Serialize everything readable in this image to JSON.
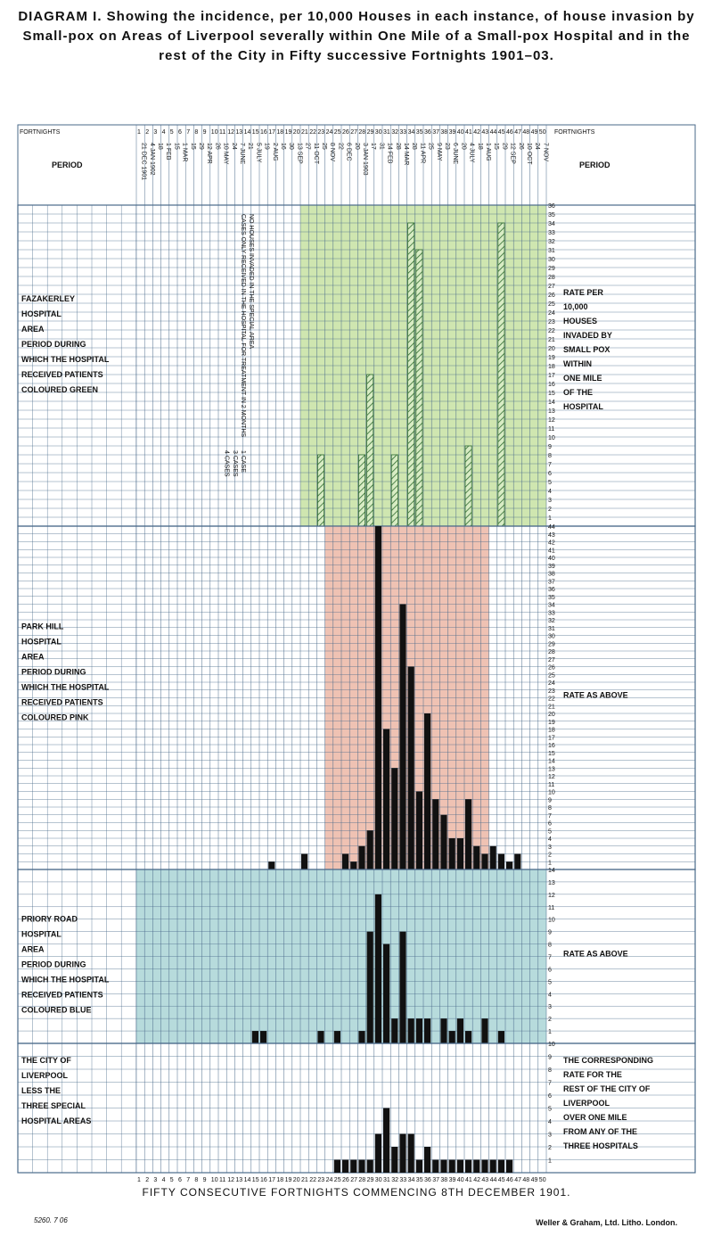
{
  "title": "DIAGRAM I. Showing the incidence, per 10,000 Houses in each instance, of house invasion by Small-pox on Areas of Liverpool severally within One Mile of a Small-pox Hospital and in the rest of the City in Fifty successive Fortnights 1901–03.",
  "header": {
    "fortnight_label": "FORTNIGHTS",
    "period_label": "PERIOD",
    "period_dates": [
      "21 DEC 1901",
      "4 JAN 1902",
      "18",
      "1 FEB",
      "15",
      "1 MAR",
      "15",
      "29",
      "12 APR",
      "26",
      "10 MAY",
      "24",
      "7 JUNE",
      "21",
      "5 JULY",
      "19",
      "2 AUG",
      "16",
      "30",
      "13 SEP",
      "27",
      "11 OCT",
      "25",
      "8 NOV",
      "22",
      "6 DEC",
      "20",
      "3 JAN 1903",
      "17",
      "31",
      "14 FEB",
      "28",
      "14 MAR",
      "28",
      "11 APR",
      "25",
      "9 MAY",
      "23",
      "6 JUNE",
      "20",
      "4 JULY",
      "18",
      "1 AUG",
      "15",
      "29",
      "12 SEP",
      "26",
      "10 OCT",
      "24",
      "7 NOV"
    ]
  },
  "annotations": {
    "fazakerley_a": "4 CASES",
    "fazakerley_b": "3 CASES",
    "fazakerley_c": "1 CASE",
    "fazakerley_d": "CASES ONLY RECEIVED IN THE HOSPITAL FOR TREATMENT IN 2 MONTHS",
    "fazakerley_e": "NO HOUSES INVADED IN THE SPECIAL AREA"
  },
  "panels": [
    {
      "key": "fazakerley",
      "label": [
        "FAZAKERLEY",
        "HOSPITAL",
        "AREA",
        "PERIOD DURING",
        "WHICH THE HOSPITAL",
        "RECEIVED PATIENTS",
        "COLOURED GREEN"
      ],
      "right_note": [
        "RATE PER",
        "10,000",
        "HOUSES",
        "INVADED BY",
        "SMALL POX",
        "WITHIN",
        "ONE MILE",
        "OF THE",
        "HOSPITAL"
      ]
    },
    {
      "key": "park_hill",
      "label": [
        "PARK HILL",
        "HOSPITAL",
        "AREA",
        "PERIOD DURING",
        "WHICH THE HOSPITAL",
        "RECEIVED PATIENTS",
        "COLOURED PINK"
      ],
      "right_note": [
        "RATE AS ABOVE"
      ]
    },
    {
      "key": "priory_road",
      "label": [
        "PRIORY ROAD",
        "HOSPITAL",
        "AREA",
        "PERIOD DURING",
        "WHICH THE HOSPITAL",
        "RECEIVED PATIENTS",
        "COLOURED BLUE"
      ],
      "right_note": [
        "RATE AS ABOVE"
      ]
    },
    {
      "key": "rest_of_city",
      "label": [
        "THE CITY OF",
        "LIVERPOOL",
        "LESS THE",
        "THREE SPECIAL",
        "HOSPITAL AREAS"
      ],
      "right_note": [
        "THE CORRESPONDING",
        "RATE FOR THE",
        "REST OF THE CITY OF",
        "LIVERPOOL",
        "OVER ONE MILE",
        "FROM ANY OF THE",
        "THREE HOSPITALS"
      ]
    }
  ],
  "colors": {
    "green": "#cfe6b0",
    "pink": "#efc2b3",
    "blue": "#b7dbdc",
    "grid": "#4a6a8a",
    "bar": "#111111",
    "hatch": "#2d6a2d"
  },
  "chart_data": [
    {
      "type": "bar",
      "title": "FAZAKERLEY HOSPITAL AREA",
      "xlabel": "",
      "ylabel": "RATE PER 10,000 HOUSES",
      "ylim": [
        0,
        36
      ],
      "x": [
        1,
        2,
        3,
        4,
        5,
        6,
        7,
        8,
        9,
        10,
        11,
        12,
        13,
        14,
        15,
        16,
        17,
        18,
        19,
        20,
        21,
        22,
        23,
        24,
        25,
        26,
        27,
        28,
        29,
        30,
        31,
        32,
        33,
        34,
        35,
        36,
        37,
        38,
        39,
        40,
        41,
        42,
        43,
        44,
        45,
        46,
        47,
        48,
        49,
        50
      ],
      "values": [
        0,
        0,
        0,
        0,
        0,
        0,
        0,
        0,
        0,
        0,
        0,
        0,
        0,
        0,
        0,
        0,
        0,
        0,
        0,
        0,
        0,
        0,
        8,
        0,
        0,
        0,
        0,
        8,
        17,
        0,
        0,
        8,
        0,
        34,
        31,
        0,
        0,
        0,
        0,
        0,
        9,
        0,
        0,
        0,
        34,
        0,
        0,
        0,
        0,
        0
      ],
      "hospital_receiving_patients": [
        21,
        50
      ]
    },
    {
      "type": "bar",
      "title": "PARK HILL HOSPITAL AREA",
      "xlabel": "",
      "ylabel": "RATE AS ABOVE",
      "ylim": [
        0,
        44
      ],
      "x": [
        1,
        2,
        3,
        4,
        5,
        6,
        7,
        8,
        9,
        10,
        11,
        12,
        13,
        14,
        15,
        16,
        17,
        18,
        19,
        20,
        21,
        22,
        23,
        24,
        25,
        26,
        27,
        28,
        29,
        30,
        31,
        32,
        33,
        34,
        35,
        36,
        37,
        38,
        39,
        40,
        41,
        42,
        43,
        44,
        45,
        46,
        47,
        48,
        49,
        50
      ],
      "values": [
        0,
        0,
        0,
        0,
        0,
        0,
        0,
        0,
        0,
        0,
        0,
        0,
        0,
        0,
        0,
        0,
        1,
        0,
        0,
        0,
        2,
        0,
        0,
        0,
        0,
        2,
        1,
        3,
        5,
        44,
        18,
        13,
        34,
        26,
        10,
        20,
        9,
        7,
        4,
        4,
        9,
        3,
        2,
        3,
        2,
        1,
        2,
        0,
        0,
        0
      ],
      "hospital_receiving_patients": [
        24,
        43
      ]
    },
    {
      "type": "bar",
      "title": "PRIORY ROAD HOSPITAL AREA",
      "xlabel": "",
      "ylabel": "RATE AS ABOVE",
      "ylim": [
        0,
        14
      ],
      "x": [
        1,
        2,
        3,
        4,
        5,
        6,
        7,
        8,
        9,
        10,
        11,
        12,
        13,
        14,
        15,
        16,
        17,
        18,
        19,
        20,
        21,
        22,
        23,
        24,
        25,
        26,
        27,
        28,
        29,
        30,
        31,
        32,
        33,
        34,
        35,
        36,
        37,
        38,
        39,
        40,
        41,
        42,
        43,
        44,
        45,
        46,
        47,
        48,
        49,
        50
      ],
      "values": [
        0,
        0,
        0,
        0,
        0,
        0,
        0,
        0,
        0,
        0,
        0,
        0,
        0,
        0,
        1,
        1,
        0,
        0,
        0,
        0,
        0,
        0,
        1,
        0,
        1,
        0,
        0,
        1,
        9,
        12,
        8,
        2,
        9,
        2,
        2,
        2,
        0,
        2,
        1,
        2,
        1,
        0,
        2,
        0,
        1,
        0,
        0,
        0,
        0,
        0
      ],
      "hospital_receiving_patients": [
        1,
        50
      ]
    },
    {
      "type": "bar",
      "title": "THE CITY OF LIVERPOOL LESS THE THREE SPECIAL HOSPITAL AREAS",
      "xlabel": "FIFTY CONSECUTIVE FORTNIGHTS COMMENCING 8TH DECEMBER 1901.",
      "ylabel": "THE CORRESPONDING RATE",
      "ylim": [
        0,
        10
      ],
      "x": [
        1,
        2,
        3,
        4,
        5,
        6,
        7,
        8,
        9,
        10,
        11,
        12,
        13,
        14,
        15,
        16,
        17,
        18,
        19,
        20,
        21,
        22,
        23,
        24,
        25,
        26,
        27,
        28,
        29,
        30,
        31,
        32,
        33,
        34,
        35,
        36,
        37,
        38,
        39,
        40,
        41,
        42,
        43,
        44,
        45,
        46,
        47,
        48,
        49,
        50
      ],
      "values": [
        0,
        0,
        0,
        0,
        0,
        0,
        0,
        0,
        0,
        0,
        0,
        0,
        0,
        0,
        0,
        0,
        0,
        0,
        0,
        0,
        0,
        0,
        0,
        0,
        1,
        1,
        1,
        1,
        1,
        3,
        5,
        2,
        3,
        3,
        1,
        2,
        1,
        1,
        1,
        1,
        1,
        1,
        1,
        1,
        1,
        1,
        0,
        0,
        0,
        0
      ]
    }
  ],
  "x_caption": "FIFTY CONSECUTIVE FORTNIGHTS COMMENCING 8TH DECEMBER 1901.",
  "footer": {
    "left": "5260. 7 06",
    "right": "Weller & Graham, Ltd. Litho. London."
  }
}
